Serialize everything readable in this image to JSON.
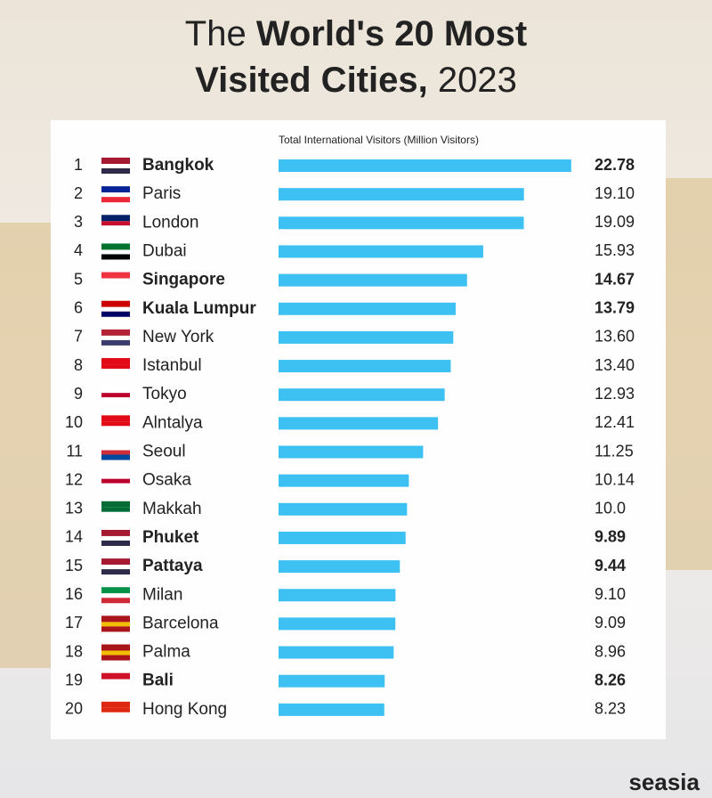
{
  "chart_data": {
    "type": "bar",
    "title": {
      "line1": {
        "light": "The",
        "bold": "World's 20 Most"
      },
      "line2": {
        "bold": "Visited Cities,",
        "light": "2023"
      }
    },
    "axis_label": "Total International Visitors (Million Visitors)",
    "ranks": [
      1,
      2,
      3,
      4,
      5,
      6,
      7,
      8,
      9,
      10,
      11,
      12,
      13,
      14,
      15,
      16,
      17,
      18,
      19,
      20
    ],
    "categories": [
      "Bangkok",
      "Paris",
      "London",
      "Dubai",
      "Singapore",
      "Kuala Lumpur",
      "New York",
      "Istanbul",
      "Tokyo",
      "Alntalya",
      "Seoul",
      "Osaka",
      "Makkah",
      "Phuket",
      "Pattaya",
      "Milan",
      "Barcelona",
      "Palma",
      "Bali",
      "Hong Kong"
    ],
    "values": [
      22.78,
      19.1,
      19.09,
      15.93,
      14.67,
      13.79,
      13.6,
      13.4,
      12.93,
      12.41,
      11.25,
      10.14,
      10.0,
      9.89,
      9.44,
      9.1,
      9.09,
      8.96,
      8.26,
      8.23
    ],
    "value_labels": [
      "22.78",
      "19.10",
      "19.09",
      "15.93",
      "14.67",
      "13.79",
      "13.60",
      "13.40",
      "12.93",
      "12.41",
      "11.25",
      "10.14",
      "10.0",
      "9.89",
      "9.44",
      "9.10",
      "9.09",
      "8.96",
      "8.26",
      "8.23"
    ],
    "emphasized": [
      true,
      false,
      false,
      false,
      true,
      true,
      false,
      false,
      false,
      false,
      false,
      false,
      false,
      true,
      true,
      false,
      false,
      false,
      true,
      false
    ],
    "color": "#3dc1f2",
    "xlim": [
      0,
      23
    ],
    "brand": "seasia"
  }
}
